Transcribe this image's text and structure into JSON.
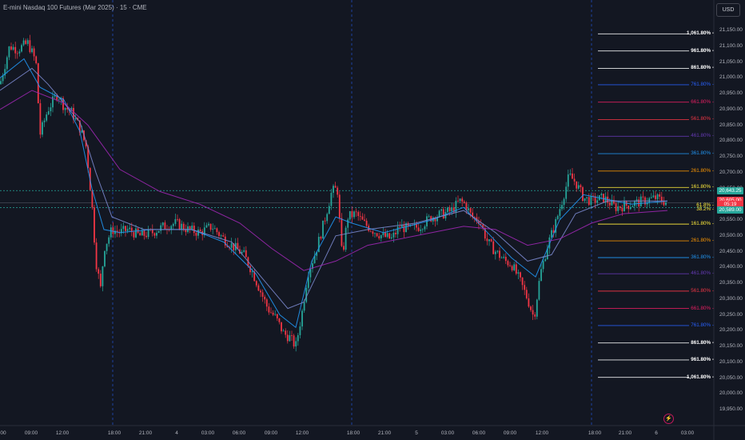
{
  "header": {
    "title": "E-mini Nasdaq 100 Futures (Mar 2025) · 15 · CME",
    "currency_button": "USD"
  },
  "price_axis": {
    "ticks": [
      "21,150.00",
      "21,100.00",
      "21,050.00",
      "21,000.00",
      "20,950.00",
      "20,900.00",
      "20,850.00",
      "20,800.00",
      "20,750.00",
      "20,700.00",
      "20,650.00",
      "20,600.00",
      "20,550.00",
      "20,500.00",
      "20,450.00",
      "20,400.00",
      "20,350.00",
      "20,300.00",
      "20,250.00",
      "20,200.00",
      "20,150.00",
      "20,100.00",
      "20,050.00",
      "20,000.00",
      "19,950.00"
    ]
  },
  "time_axis": {
    "ticks": [
      "00",
      "09:00",
      "12:00",
      "18:00",
      "21:00",
      "4",
      "03:00",
      "06:00",
      "09:00",
      "12:00",
      "18:00",
      "21:00",
      "5",
      "03:00",
      "06:00",
      "09:00",
      "12:00",
      "18:00",
      "21:00",
      "6",
      "03:00"
    ]
  },
  "fib_levels": {
    "upper": [
      {
        "label": "1,061.80%",
        "color": "#ffffff",
        "price": 21139
      },
      {
        "label": "961.80%",
        "color": "#ffffff",
        "price": 21085
      },
      {
        "label": "861.80%",
        "color": "#ffffff",
        "price": 21030
      },
      {
        "label": "761.80%",
        "color": "#2962ff",
        "price": 20978
      },
      {
        "label": "661.80%",
        "color": "#e91e63",
        "price": 20923
      },
      {
        "label": "561.80%",
        "color": "#f23645",
        "price": 20868
      },
      {
        "label": "461.80%",
        "color": "#673ab7",
        "price": 20815
      },
      {
        "label": "361.80%",
        "color": "#2196f3",
        "price": 20760
      },
      {
        "label": "261.80%",
        "color": "#ff9800",
        "price": 20705
      },
      {
        "label": "161.80%",
        "color": "#ffeb3b",
        "price": 20653
      }
    ],
    "lower": [
      {
        "label": "161.80%",
        "color": "#ffeb3b",
        "price": 20537
      },
      {
        "label": "261.80%",
        "color": "#ff9800",
        "price": 20484
      },
      {
        "label": "361.80%",
        "color": "#2196f3",
        "price": 20431
      },
      {
        "label": "461.80%",
        "color": "#673ab7",
        "price": 20380
      },
      {
        "label": "561.80%",
        "color": "#f23645",
        "price": 20325
      },
      {
        "label": "661.80%",
        "color": "#e91e63",
        "price": 20270
      },
      {
        "label": "761.80%",
        "color": "#2962ff",
        "price": 20216
      },
      {
        "label": "861.80%",
        "color": "#ffffff",
        "price": 20161
      },
      {
        "label": "961.80%",
        "color": "#ffffff",
        "price": 20107
      },
      {
        "label": "1,061.80%",
        "color": "#ffffff",
        "price": 20052
      }
    ],
    "mid_labels": [
      "61.8%",
      "38.2%"
    ]
  },
  "price_tags": {
    "upper": {
      "text": "20,643.25",
      "color": "#26a69a"
    },
    "last": {
      "text": "20,605.00",
      "color": "#f23645"
    },
    "countdown": {
      "text": "05:19",
      "color": "#f23645"
    },
    "lower": {
      "text": "20,589.00",
      "color": "#26a69a"
    }
  },
  "colors": {
    "bull": "#26a69a",
    "bear": "#f23645",
    "ma_fast": "#2196f3",
    "ma_mid": "#7986cb",
    "ma_slow": "#9c27b0",
    "session_line": "#2962ff"
  },
  "chart_data": {
    "type": "candlestick",
    "symbol": "E-mini Nasdaq 100 Futures (Mar 2025)",
    "interval": "15",
    "ylim": [
      19950,
      21160
    ],
    "close_path": [
      [
        0,
        20980
      ],
      [
        12,
        21100
      ],
      [
        22,
        21090
      ],
      [
        35,
        21110
      ],
      [
        45,
        21050
      ],
      [
        50,
        20820
      ],
      [
        60,
        20900
      ],
      [
        72,
        20950
      ],
      [
        80,
        20910
      ],
      [
        90,
        20890
      ],
      [
        100,
        20840
      ],
      [
        108,
        20780
      ],
      [
        115,
        20600
      ],
      [
        120,
        20420
      ],
      [
        126,
        20330
      ],
      [
        130,
        20460
      ],
      [
        140,
        20520
      ],
      [
        150,
        20510
      ],
      [
        160,
        20520
      ],
      [
        175,
        20500
      ],
      [
        190,
        20510
      ],
      [
        205,
        20530
      ],
      [
        220,
        20540
      ],
      [
        235,
        20520
      ],
      [
        250,
        20510
      ],
      [
        265,
        20530
      ],
      [
        280,
        20490
      ],
      [
        295,
        20460
      ],
      [
        305,
        20440
      ],
      [
        315,
        20390
      ],
      [
        325,
        20330
      ],
      [
        335,
        20270
      ],
      [
        345,
        20240
      ],
      [
        355,
        20190
      ],
      [
        362,
        20180
      ],
      [
        370,
        20150
      ],
      [
        378,
        20260
      ],
      [
        385,
        20380
      ],
      [
        395,
        20450
      ],
      [
        405,
        20540
      ],
      [
        415,
        20640
      ],
      [
        422,
        20650
      ],
      [
        428,
        20430
      ],
      [
        435,
        20560
      ],
      [
        445,
        20570
      ],
      [
        455,
        20540
      ],
      [
        465,
        20520
      ],
      [
        478,
        20500
      ],
      [
        490,
        20490
      ],
      [
        500,
        20530
      ],
      [
        512,
        20520
      ],
      [
        525,
        20530
      ],
      [
        540,
        20560
      ],
      [
        555,
        20570
      ],
      [
        565,
        20580
      ],
      [
        575,
        20610
      ],
      [
        582,
        20600
      ],
      [
        590,
        20560
      ],
      [
        600,
        20550
      ],
      [
        610,
        20480
      ],
      [
        620,
        20450
      ],
      [
        632,
        20420
      ],
      [
        640,
        20410
      ],
      [
        650,
        20360
      ],
      [
        660,
        20300
      ],
      [
        668,
        20240
      ],
      [
        676,
        20380
      ],
      [
        685,
        20470
      ],
      [
        695,
        20540
      ],
      [
        703,
        20610
      ],
      [
        712,
        20690
      ],
      [
        720,
        20670
      ],
      [
        730,
        20620
      ],
      [
        740,
        20610
      ],
      [
        755,
        20620
      ],
      [
        770,
        20590
      ],
      [
        790,
        20600
      ],
      [
        805,
        20610
      ],
      [
        820,
        20620
      ],
      [
        830,
        20610
      ],
      [
        835,
        20605
      ]
    ],
    "moving_averages": [
      {
        "values_path": [
          [
            0,
            21000
          ],
          [
            30,
            21060
          ],
          [
            50,
            20970
          ],
          [
            80,
            20930
          ],
          [
            100,
            20830
          ],
          [
            115,
            20650
          ],
          [
            130,
            20520
          ],
          [
            150,
            20510
          ],
          [
            190,
            20520
          ],
          [
            240,
            20520
          ],
          [
            280,
            20480
          ],
          [
            320,
            20380
          ],
          [
            350,
            20250
          ],
          [
            370,
            20210
          ],
          [
            390,
            20420
          ],
          [
            420,
            20560
          ],
          [
            440,
            20540
          ],
          [
            480,
            20510
          ],
          [
            540,
            20550
          ],
          [
            580,
            20590
          ],
          [
            610,
            20510
          ],
          [
            640,
            20430
          ],
          [
            670,
            20370
          ],
          [
            700,
            20550
          ],
          [
            730,
            20630
          ],
          [
            790,
            20600
          ],
          [
            835,
            20610
          ]
        ]
      },
      {
        "values_path": [
          [
            0,
            20960
          ],
          [
            40,
            21030
          ],
          [
            60,
            20980
          ],
          [
            100,
            20860
          ],
          [
            120,
            20700
          ],
          [
            140,
            20560
          ],
          [
            180,
            20520
          ],
          [
            240,
            20520
          ],
          [
            290,
            20480
          ],
          [
            330,
            20360
          ],
          [
            360,
            20270
          ],
          [
            380,
            20290
          ],
          [
            420,
            20500
          ],
          [
            460,
            20520
          ],
          [
            520,
            20540
          ],
          [
            580,
            20580
          ],
          [
            620,
            20510
          ],
          [
            660,
            20420
          ],
          [
            690,
            20440
          ],
          [
            720,
            20570
          ],
          [
            760,
            20610
          ],
          [
            835,
            20610
          ]
        ]
      },
      {
        "values_path": [
          [
            0,
            20900
          ],
          [
            40,
            20960
          ],
          [
            80,
            20920
          ],
          [
            110,
            20850
          ],
          [
            150,
            20710
          ],
          [
            200,
            20640
          ],
          [
            250,
            20600
          ],
          [
            300,
            20540
          ],
          [
            340,
            20460
          ],
          [
            380,
            20390
          ],
          [
            420,
            20420
          ],
          [
            460,
            20470
          ],
          [
            520,
            20500
          ],
          [
            580,
            20530
          ],
          [
            620,
            20520
          ],
          [
            660,
            20470
          ],
          [
            700,
            20490
          ],
          [
            740,
            20540
          ],
          [
            780,
            20570
          ],
          [
            835,
            20580
          ]
        ]
      }
    ]
  }
}
